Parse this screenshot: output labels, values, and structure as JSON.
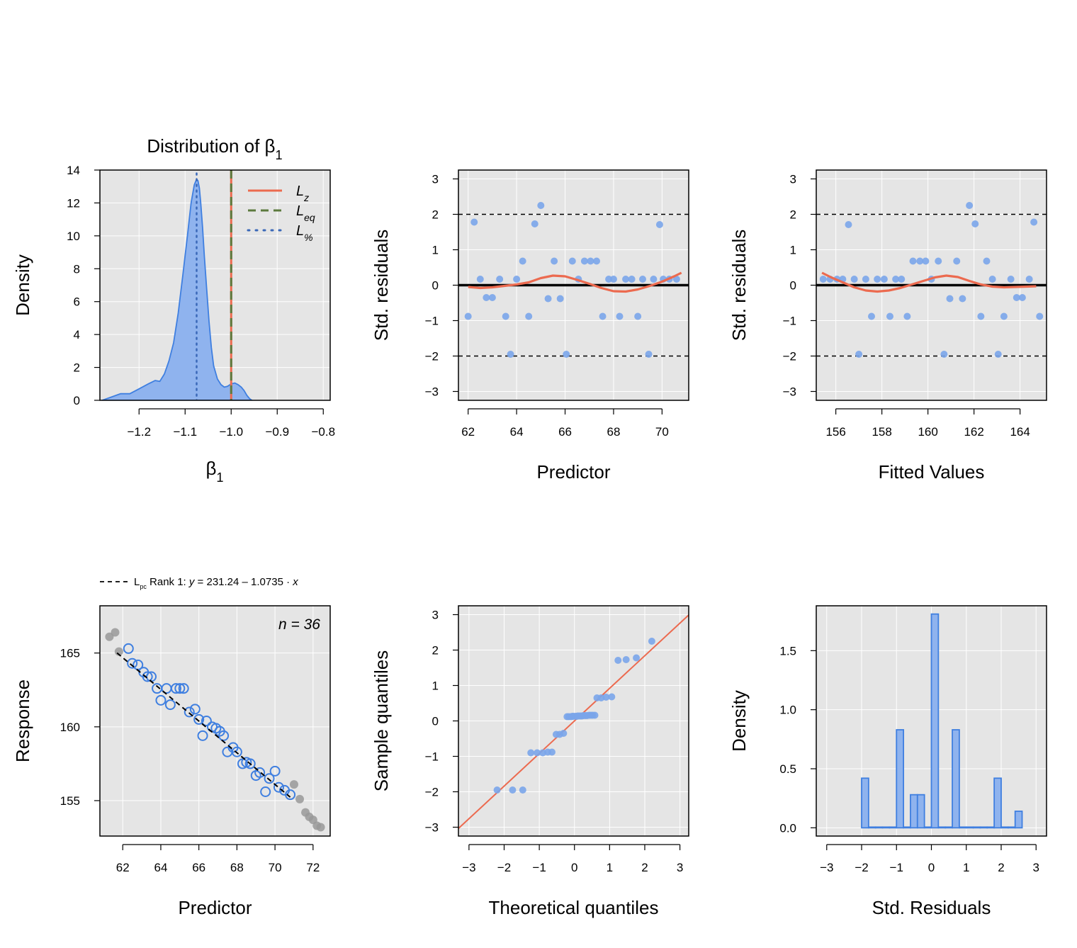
{
  "colors": {
    "panel_bg": "#e5e5e5",
    "grid": "#ffffff",
    "blue": "#7aa5ea",
    "blue_fill": "#8fb3ee",
    "blue_line": "#3f7fe0",
    "red": "#ec6a4f",
    "green": "#5c7a3e",
    "darkblue": "#3a68b8",
    "grey": "#999999"
  },
  "chart_data": [
    {
      "id": "density",
      "type": "area",
      "title_main": "Distribution of ",
      "title_sym": "β",
      "title_sub": "1",
      "xlabel_sym": "β",
      "xlabel_sub": "1",
      "ylabel": "Density",
      "xlim": [
        -1.285,
        -0.785
      ],
      "ylim": [
        0,
        14
      ],
      "xticks": [
        -1.2,
        -1.1,
        -1.0,
        -0.9,
        -0.8
      ],
      "xtick_labels": [
        "−1.2",
        "−1.1",
        "−1.0",
        "−0.9",
        "−0.8"
      ],
      "yticks": [
        0,
        2,
        4,
        6,
        8,
        10,
        12,
        14
      ],
      "ytick_labels": [
        "0",
        "2",
        "4",
        "6",
        "8",
        "10",
        "12",
        "14"
      ],
      "x": [
        -1.28,
        -1.26,
        -1.24,
        -1.22,
        -1.2,
        -1.18,
        -1.165,
        -1.155,
        -1.145,
        -1.135,
        -1.125,
        -1.115,
        -1.105,
        -1.095,
        -1.087,
        -1.08,
        -1.075,
        -1.072,
        -1.069,
        -1.066,
        -1.062,
        -1.058,
        -1.053,
        -1.048,
        -1.043,
        -1.038,
        -1.03,
        -1.022,
        -1.015,
        -1.008,
        -1.0,
        -0.992,
        -0.985,
        -0.978,
        -0.972,
        -0.966,
        -0.96,
        -0.955
      ],
      "y": [
        0,
        0.2,
        0.4,
        0.4,
        0.7,
        1.0,
        1.2,
        1.15,
        1.6,
        2.4,
        3.5,
        5.3,
        7.6,
        10.0,
        12.0,
        13.1,
        13.45,
        13.35,
        12.9,
        12.0,
        10.5,
        8.7,
        6.7,
        4.8,
        3.2,
        2.1,
        1.3,
        0.95,
        0.8,
        0.85,
        1.0,
        1.05,
        0.95,
        0.8,
        0.6,
        0.3,
        0.1,
        0
      ],
      "legend": [
        {
          "label": "L",
          "sub": "z",
          "style": "solid",
          "color": "red"
        },
        {
          "label": "L",
          "sub": "eq",
          "style": "dashed",
          "color": "green"
        },
        {
          "label": "L",
          "sub": "%",
          "style": "dotted",
          "color": "darkblue"
        }
      ],
      "vlines": [
        {
          "x": -1.0,
          "style": "solid",
          "color": "red"
        },
        {
          "x": -1.0,
          "style": "dashed",
          "color": "green"
        },
        {
          "x": -1.075,
          "style": "dotted",
          "color": "darkblue",
          "top": 13.8
        }
      ]
    },
    {
      "id": "resid-vs-predictor",
      "type": "scatter",
      "xlabel": "Predictor",
      "ylabel": "Std. residuals",
      "xlim": [
        61.6,
        71.1
      ],
      "ylim": [
        -3.25,
        3.25
      ],
      "xticks": [
        62,
        64,
        66,
        68,
        70
      ],
      "xtick_labels": [
        "62",
        "64",
        "66",
        "68",
        "70"
      ],
      "yticks": [
        -3,
        -2,
        -1,
        0,
        1,
        2,
        3
      ],
      "ytick_labels": [
        "−3",
        "−2",
        "−1",
        "0",
        "1",
        "2",
        "3"
      ],
      "hlines": [
        -2,
        2
      ],
      "x": [
        62.0,
        62.25,
        62.5,
        62.75,
        63.0,
        63.3,
        63.55,
        63.75,
        64.0,
        64.25,
        64.5,
        64.75,
        65.0,
        65.3,
        65.55,
        65.8,
        66.05,
        66.3,
        66.55,
        66.8,
        67.05,
        67.3,
        67.55,
        67.8,
        68.0,
        68.25,
        68.5,
        68.75,
        69.0,
        69.2,
        69.45,
        69.65,
        69.9,
        70.05,
        70.3,
        70.6
      ],
      "y": [
        -0.88,
        1.78,
        0.17,
        -0.35,
        -0.35,
        0.17,
        -0.88,
        -1.95,
        0.17,
        0.68,
        -0.88,
        1.73,
        2.25,
        -0.38,
        0.68,
        -0.38,
        -1.95,
        0.68,
        0.17,
        0.68,
        0.68,
        0.68,
        -0.88,
        0.17,
        0.17,
        -0.88,
        0.17,
        0.17,
        -0.88,
        0.17,
        -1.95,
        0.17,
        1.71,
        0.17,
        0.17,
        0.17
      ],
      "smooth_x": [
        62.0,
        62.5,
        63.0,
        63.5,
        64.0,
        64.5,
        65.0,
        65.5,
        66.0,
        66.5,
        67.0,
        67.5,
        68.0,
        68.5,
        69.0,
        69.5,
        70.0,
        70.5,
        70.8
      ],
      "smooth_y": [
        -0.05,
        -0.08,
        -0.06,
        -0.02,
        0.02,
        0.08,
        0.2,
        0.27,
        0.25,
        0.15,
        0.04,
        -0.08,
        -0.17,
        -0.18,
        -0.12,
        -0.02,
        0.1,
        0.25,
        0.35
      ]
    },
    {
      "id": "resid-vs-fitted",
      "type": "scatter",
      "xlabel": "Fitted Values",
      "ylabel": "Std. residuals",
      "xlim": [
        155.15,
        165.15
      ],
      "ylim": [
        -3.25,
        3.25
      ],
      "xticks": [
        156,
        158,
        160,
        162,
        164
      ],
      "xtick_labels": [
        "156",
        "158",
        "160",
        "162",
        "164"
      ],
      "yticks": [
        -3,
        -2,
        -1,
        0,
        1,
        2,
        3
      ],
      "ytick_labels": [
        "−3",
        "−2",
        "−1",
        "0",
        "1",
        "2",
        "3"
      ],
      "hlines": [
        -2,
        2
      ],
      "x": [
        164.85,
        164.6,
        164.4,
        164.1,
        163.85,
        163.6,
        163.3,
        163.05,
        162.8,
        162.55,
        162.3,
        162.05,
        161.8,
        161.5,
        161.25,
        160.95,
        160.7,
        160.45,
        160.15,
        159.9,
        159.65,
        159.35,
        159.1,
        158.85,
        158.6,
        158.35,
        158.1,
        157.8,
        157.55,
        157.3,
        157.0,
        156.8,
        156.55,
        156.3,
        156.05,
        155.75,
        155.45
      ],
      "y": [
        -0.88,
        1.78,
        0.17,
        -0.35,
        -0.35,
        0.17,
        -0.88,
        -1.95,
        0.17,
        0.68,
        -0.88,
        1.73,
        2.25,
        -0.38,
        0.68,
        -0.38,
        -1.95,
        0.68,
        0.17,
        0.68,
        0.68,
        0.68,
        -0.88,
        0.17,
        0.17,
        -0.88,
        0.17,
        0.17,
        -0.88,
        0.17,
        -1.95,
        0.17,
        1.71,
        0.17,
        0.17,
        0.17,
        0.17
      ],
      "smooth_x": [
        155.4,
        155.8,
        156.3,
        156.8,
        157.3,
        157.8,
        158.3,
        158.8,
        159.3,
        159.8,
        160.3,
        160.8,
        161.3,
        161.8,
        162.3,
        162.8,
        163.3,
        163.8,
        164.3,
        164.7
      ],
      "smooth_y": [
        0.35,
        0.22,
        0.08,
        -0.06,
        -0.15,
        -0.18,
        -0.15,
        -0.08,
        0.02,
        0.12,
        0.22,
        0.27,
        0.23,
        0.12,
        0.02,
        -0.04,
        -0.06,
        -0.05,
        -0.04,
        -0.03
      ]
    },
    {
      "id": "response-vs-predictor",
      "type": "scatter",
      "xlabel": "Predictor",
      "ylabel": "Response",
      "xlim": [
        60.8,
        72.9
      ],
      "ylim": [
        152.6,
        168.2
      ],
      "xticks": [
        62,
        64,
        66,
        68,
        70,
        72
      ],
      "xtick_labels": [
        "62",
        "64",
        "66",
        "68",
        "70",
        "72"
      ],
      "yticks": [
        155,
        160,
        165
      ],
      "ytick_labels": [
        "155",
        "160",
        "165"
      ],
      "annotation": "n = 36",
      "fit_line_note": {
        "prefix": "L",
        "sub": "pc",
        "rank": " Rank 1: ",
        "eq_y": "y",
        "eq_mid": " = 231.24  –  1.0735 · ",
        "eq_x": "x"
      },
      "fit": {
        "intercept": 231.24,
        "slope": -1.0735,
        "x_range": [
          61.7,
          70.8
        ]
      },
      "open_x": [
        62.3,
        62.5,
        62.8,
        63.1,
        63.3,
        63.5,
        63.8,
        64.0,
        64.3,
        64.5,
        64.8,
        65.0,
        65.2,
        65.5,
        65.8,
        66.0,
        66.2,
        66.4,
        66.7,
        66.9,
        67.1,
        67.3,
        67.5,
        67.8,
        68.0,
        68.3,
        68.5,
        68.7,
        69.0,
        69.2,
        69.5,
        69.7,
        70.0,
        70.2,
        70.5,
        70.8
      ],
      "open_y": [
        165.3,
        164.3,
        164.2,
        163.7,
        163.4,
        163.4,
        162.6,
        161.8,
        162.6,
        161.5,
        162.6,
        162.6,
        162.6,
        161.0,
        161.2,
        160.5,
        159.4,
        160.4,
        160.0,
        159.9,
        159.7,
        159.4,
        158.3,
        158.6,
        158.3,
        157.5,
        157.6,
        157.5,
        156.7,
        156.9,
        155.6,
        156.5,
        157.0,
        155.9,
        155.7,
        155.4
      ],
      "grey_x": [
        61.3,
        61.6,
        61.8,
        71.0,
        71.3,
        71.6,
        71.8,
        72.0,
        72.2,
        72.4
      ],
      "grey_y": [
        166.1,
        166.4,
        165.1,
        156.1,
        155.1,
        154.2,
        153.9,
        153.7,
        153.3,
        153.2
      ]
    },
    {
      "id": "qq",
      "type": "scatter",
      "xlabel": "Theoretical quantiles",
      "ylabel": "Sample quantiles",
      "xlim": [
        -3.3,
        3.25
      ],
      "ylim": [
        -3.25,
        3.25
      ],
      "xticks": [
        -3,
        -2,
        -1,
        0,
        1,
        2,
        3
      ],
      "xtick_labels": [
        "−3",
        "−2",
        "−1",
        "0",
        "1",
        "2",
        "3"
      ],
      "yticks": [
        -3,
        -2,
        -1,
        0,
        1,
        2,
        3
      ],
      "ytick_labels": [
        "−3",
        "−2",
        "−1",
        "0",
        "1",
        "2",
        "3"
      ],
      "ref_line": {
        "intercept": 0.0,
        "slope": 0.92
      },
      "x": [
        -2.2,
        -1.76,
        -1.47,
        -1.24,
        -1.06,
        -0.9,
        -0.76,
        -0.64,
        -0.52,
        -0.42,
        -0.31,
        -0.21,
        -0.1,
        -0.03,
        0.03,
        0.1,
        0.21,
        0.31,
        0.42,
        0.52,
        0.64,
        0.76,
        0.9,
        1.06,
        1.24,
        1.47,
        1.76,
        2.2,
        -0.16,
        0.16,
        0.06,
        -0.06,
        0.26,
        0.36,
        0.47,
        0.58
      ],
      "y": [
        -1.95,
        -1.95,
        -1.95,
        -0.9,
        -0.9,
        -0.9,
        -0.88,
        -0.88,
        -0.38,
        -0.38,
        -0.35,
        0.12,
        0.12,
        0.13,
        0.13,
        0.14,
        0.14,
        0.15,
        0.16,
        0.16,
        0.65,
        0.65,
        0.67,
        0.68,
        1.71,
        1.73,
        1.78,
        2.25,
        0.12,
        0.14,
        0.13,
        0.13,
        0.15,
        0.15,
        0.16,
        0.16
      ]
    },
    {
      "id": "resid-histogram",
      "type": "bar",
      "xlabel": "Std. Residuals",
      "ylabel": "Density",
      "xlim": [
        -3.3,
        3.3
      ],
      "ylim": [
        -0.07,
        1.88
      ],
      "xticks": [
        -3,
        -2,
        -1,
        0,
        1,
        2,
        3
      ],
      "xtick_labels": [
        "−3",
        "−2",
        "−1",
        "0",
        "1",
        "2",
        "3"
      ],
      "yticks": [
        0.0,
        0.5,
        1.0,
        1.5
      ],
      "ytick_labels": [
        "0.0",
        "0.5",
        "1.0",
        "1.5"
      ],
      "bin_start": -2.0,
      "bin_width": 0.2,
      "values": [
        0.42,
        0.0,
        0.0,
        0.0,
        0.0,
        0.83,
        0.0,
        0.28,
        0.28,
        0.0,
        1.81,
        0.0,
        0.0,
        0.83,
        0.0,
        0.0,
        0.0,
        0.0,
        0.0,
        0.42,
        0.0,
        0.0,
        0.14
      ]
    }
  ]
}
